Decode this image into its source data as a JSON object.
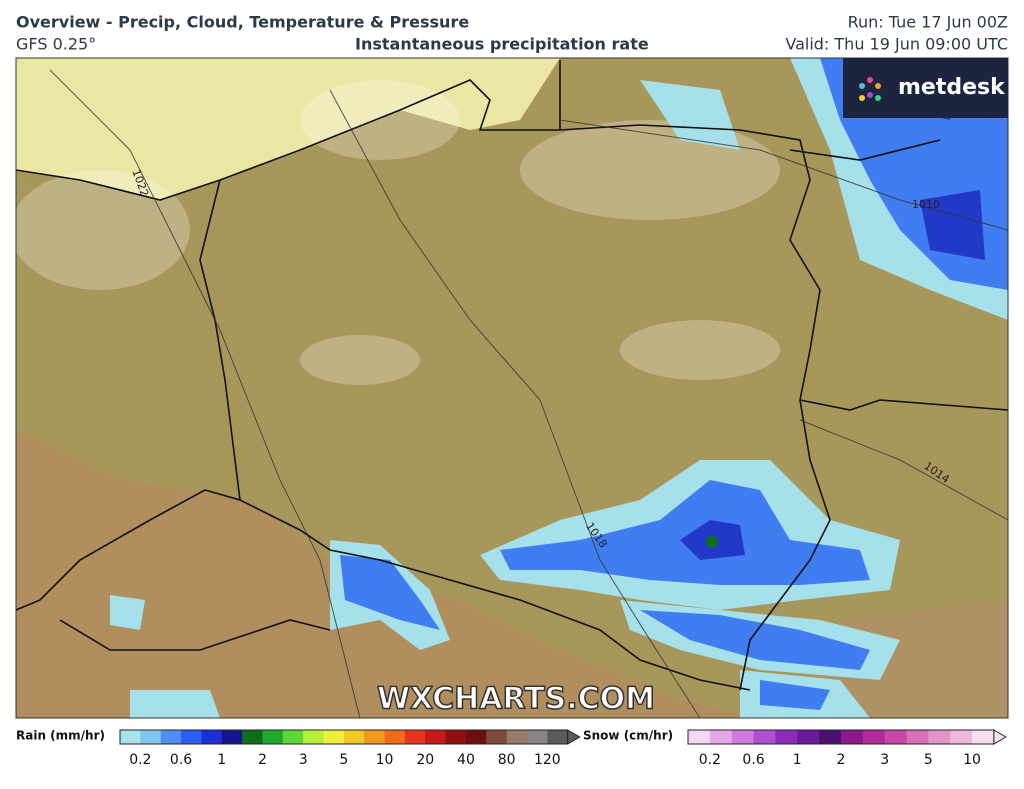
{
  "header": {
    "title": "Overview - Precip, Cloud, Temperature & Pressure",
    "model": "GFS 0.25°",
    "product": "Instantaneous precipitation rate",
    "run": "Run: Tue 17 Jun 00Z",
    "valid": "Valid: Thu 19 Jun 09:00 UTC"
  },
  "logo": "metdesk",
  "watermark": "WXCHARTS.COM",
  "isobar_labels": [
    "1022",
    "1010",
    "1014",
    "1018"
  ],
  "legend": {
    "rain": {
      "title": "Rain (mm/hr)",
      "ticks": [
        "0.2",
        "0.6",
        "1",
        "2",
        "3",
        "5",
        "10",
        "20",
        "40",
        "80",
        "120"
      ],
      "colors": [
        "#a8e4ee",
        "#7fc6ee",
        "#4f8ff0",
        "#2a5ef0",
        "#1c2ed8",
        "#14148c",
        "#0d6e1a",
        "#1fa82c",
        "#5ed63a",
        "#b6f03c",
        "#f0f03c",
        "#f0c828",
        "#f09a1e",
        "#f06a1c",
        "#e8341c",
        "#c81818",
        "#901010",
        "#6a1010",
        "#7a4a3a",
        "#9a7a6a",
        "#8a8484",
        "#5a5a5a"
      ]
    },
    "snow": {
      "title": "Snow (cm/hr)",
      "ticks": [
        "0.2",
        "0.6",
        "1",
        "2",
        "3",
        "5",
        "10"
      ],
      "colors": [
        "#f4d8f4",
        "#e4a8e8",
        "#d07ade",
        "#b050d0",
        "#8a2cb8",
        "#6a1a98",
        "#4a1070",
        "#8a1a8a",
        "#b02a9a",
        "#c848a8",
        "#d870b8",
        "#e494c8",
        "#eeb8dc",
        "#f8e0f0"
      ]
    }
  }
}
